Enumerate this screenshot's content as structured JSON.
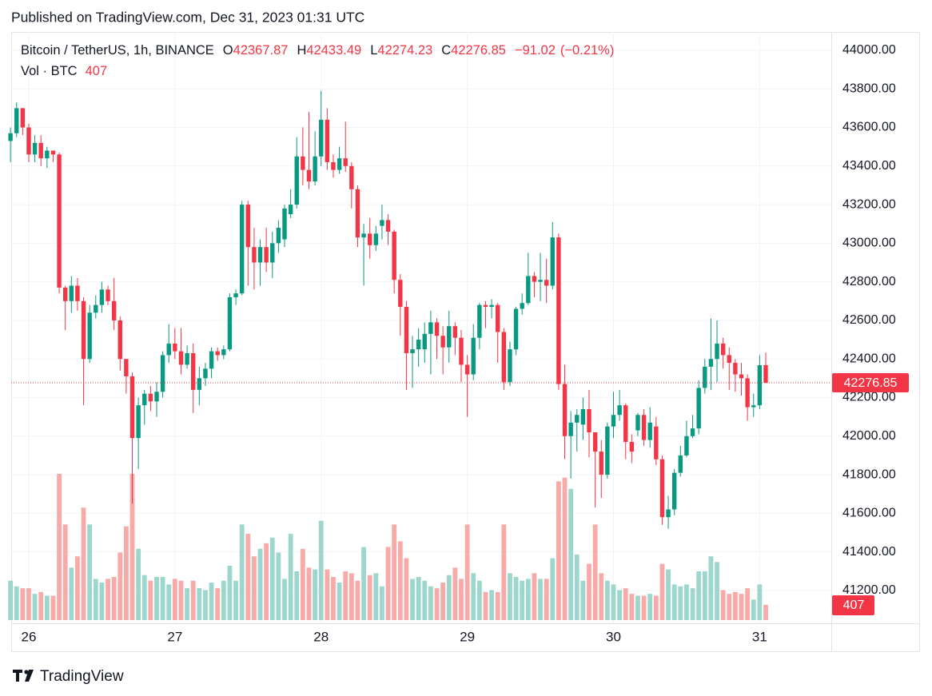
{
  "header": {
    "published": "Published on TradingView.com, Dec 31, 2023 01:31 UTC"
  },
  "footer": {
    "brand": "TradingView"
  },
  "chart_data": {
    "type": "candlestick",
    "symbol": "Bitcoin / TetherUS, 1h, BINANCE",
    "ohlc_labels": [
      "O",
      "H",
      "L",
      "C"
    ],
    "change": {
      "value": -91.02,
      "label": "−91.02"
    },
    "change_pct": {
      "value": -0.21,
      "label": "(−0.21%)"
    },
    "volume_label": "Vol · BTC",
    "up_color": "#089981",
    "down_color": "#f23645",
    "volume_up_color": "#9dd6cd",
    "volume_down_color": "#f7aaa8",
    "ylim": [
      41030,
      44095
    ],
    "yticks": [
      {
        "value": 41200,
        "label": "41200.00"
      },
      {
        "value": 41400,
        "label": "41400.00"
      },
      {
        "value": 41600,
        "label": "41600.00"
      },
      {
        "value": 41800,
        "label": "41800.00"
      },
      {
        "value": 42000,
        "label": "42000.00"
      },
      {
        "value": 42200,
        "label": "42200.00"
      },
      {
        "value": 42400,
        "label": "42400.00"
      },
      {
        "value": 42600,
        "label": "42600.00"
      },
      {
        "value": 42800,
        "label": "42800.00"
      },
      {
        "value": 43000,
        "label": "43000.00"
      },
      {
        "value": 43200,
        "label": "43200.00"
      },
      {
        "value": 43400,
        "label": "43400.00"
      },
      {
        "value": 43600,
        "label": "43600.00"
      },
      {
        "value": 43800,
        "label": "43800.00"
      },
      {
        "value": 44000,
        "label": "44000.00"
      }
    ],
    "grid": true,
    "categories": [
      null,
      null,
      null,
      "26",
      null,
      null,
      null,
      null,
      null,
      null,
      null,
      null,
      null,
      null,
      null,
      null,
      null,
      null,
      null,
      null,
      null,
      null,
      null,
      null,
      null,
      null,
      null,
      "27",
      null,
      null,
      null,
      null,
      null,
      null,
      null,
      null,
      null,
      null,
      null,
      null,
      null,
      null,
      null,
      null,
      null,
      null,
      null,
      null,
      null,
      null,
      null,
      "28",
      null,
      null,
      null,
      null,
      null,
      null,
      null,
      null,
      null,
      null,
      null,
      null,
      null,
      null,
      null,
      null,
      null,
      null,
      null,
      null,
      null,
      null,
      null,
      "29",
      null,
      null,
      null,
      null,
      null,
      null,
      null,
      null,
      null,
      null,
      null,
      null,
      null,
      null,
      null,
      null,
      null,
      null,
      null,
      null,
      null,
      null,
      null,
      "30",
      null,
      null,
      null,
      null,
      null,
      null,
      null,
      null,
      null,
      null,
      null,
      null,
      null,
      null,
      null,
      null,
      null,
      null,
      null,
      null,
      null,
      null,
      null,
      "31",
      null
    ],
    "open": [
      43530,
      43570,
      43700,
      43600,
      43460,
      43520,
      43440,
      43480,
      43460,
      42770,
      42700,
      42780,
      42700,
      42400,
      42640,
      42680,
      42760,
      42700,
      42600,
      42400,
      42310,
      41990,
      42160,
      42220,
      42180,
      42230,
      42420,
      42480,
      42440,
      42370,
      42430,
      42240,
      42300,
      42350,
      42440,
      42420,
      42450,
      42720,
      42740,
      43200,
      42980,
      42900,
      42980,
      42900,
      43000,
      43020,
      43150,
      43200,
      43450,
      43380,
      43320,
      43450,
      43640,
      43420,
      43380,
      43440,
      43400,
      43280,
      43030,
      43050,
      42990,
      43090,
      43120,
      43060,
      42810,
      42670,
      42430,
      42450,
      42450,
      42530,
      42590,
      42520,
      42460,
      42570,
      42510,
      42370,
      42320,
      42510,
      42680,
      42670,
      42680,
      42540,
      42280,
      42450,
      42660,
      42690,
      42830,
      42800,
      42810,
      42780,
      43030,
      42270,
      42000,
      42070,
      42060,
      42140,
      42020,
      41920,
      41800,
      42050,
      42110,
      42160,
      41970,
      42030,
      42110,
      41980,
      42050,
      41880,
      41580,
      41620,
      41810,
      41900,
      42000,
      42040,
      42250,
      42360,
      42400,
      42480,
      42420,
      42380,
      42320,
      42300,
      42150,
      42160,
      42367.87
    ],
    "high": [
      43600,
      43730,
      43700,
      43620,
      43560,
      43560,
      43500,
      43480,
      43470,
      42780,
      42830,
      42820,
      42720,
      42680,
      42730,
      42800,
      42780,
      42820,
      42620,
      42400,
      42330,
      42200,
      42240,
      42260,
      42280,
      42440,
      42580,
      42560,
      42560,
      42470,
      42480,
      42360,
      42380,
      42460,
      42460,
      42470,
      42740,
      42760,
      43220,
      43220,
      43080,
      43020,
      43080,
      43060,
      43120,
      43200,
      43280,
      43550,
      43600,
      43680,
      43580,
      43790,
      43700,
      43460,
      43500,
      43630,
      43420,
      43300,
      43100,
      43130,
      43090,
      43200,
      43150,
      43070,
      42840,
      42700,
      42520,
      42560,
      42590,
      42650,
      42610,
      42570,
      42650,
      42590,
      42550,
      42420,
      42580,
      42690,
      42700,
      42710,
      42690,
      42560,
      42490,
      42670,
      42740,
      42950,
      42850,
      42950,
      42920,
      43110,
      43050,
      42370,
      42130,
      42140,
      42200,
      42240,
      42020,
      41980,
      42070,
      42230,
      42240,
      42170,
      42010,
      42120,
      42140,
      42150,
      42100,
      41900,
      41690,
      41830,
      41950,
      42080,
      42110,
      42290,
      42400,
      42610,
      42600,
      42510,
      42460,
      42400,
      42380,
      42320,
      42220,
      42420,
      42433.49
    ],
    "low": [
      43420,
      43550,
      43560,
      43420,
      43420,
      43400,
      43390,
      43420,
      42740,
      42550,
      42640,
      42650,
      42160,
      42380,
      42610,
      42640,
      42680,
      42550,
      42340,
      42220,
      41650,
      41830,
      42060,
      42130,
      42100,
      42200,
      42380,
      42400,
      42320,
      42350,
      42120,
      42160,
      42260,
      42300,
      42390,
      42400,
      42440,
      42680,
      42730,
      42780,
      42760,
      42780,
      42850,
      42820,
      42950,
      42980,
      43130,
      43180,
      43300,
      43280,
      43300,
      43400,
      43380,
      43340,
      43360,
      43370,
      43180,
      42980,
      42780,
      42920,
      42960,
      43020,
      42990,
      42740,
      42520,
      42240,
      42250,
      42360,
      42380,
      42320,
      42400,
      42320,
      42380,
      42420,
      42280,
      42100,
      42290,
      42450,
      42560,
      42610,
      42380,
      42240,
      42260,
      42420,
      42630,
      42680,
      42720,
      42700,
      42690,
      42760,
      42240,
      41880,
      41780,
      41920,
      41980,
      41890,
      41630,
      41680,
      41780,
      41990,
      42080,
      41880,
      41860,
      42000,
      41950,
      41940,
      41850,
      41540,
      41520,
      41590,
      41790,
      41890,
      41990,
      42010,
      42220,
      42240,
      42280,
      42350,
      42240,
      42230,
      42210,
      42080,
      42100,
      42140,
      42274.23
    ],
    "close": [
      43570,
      43700,
      43600,
      43460,
      43520,
      43440,
      43480,
      43460,
      42770,
      42700,
      42780,
      42700,
      42400,
      42640,
      42680,
      42760,
      42700,
      42600,
      42400,
      42310,
      41990,
      42160,
      42220,
      42180,
      42230,
      42420,
      42480,
      42440,
      42370,
      42430,
      42240,
      42300,
      42350,
      42440,
      42420,
      42450,
      42720,
      42740,
      43200,
      42980,
      42900,
      42980,
      42900,
      43000,
      43080,
      43180,
      43200,
      43450,
      43380,
      43320,
      43450,
      43640,
      43420,
      43380,
      43440,
      43400,
      43280,
      43030,
      43050,
      42990,
      43050,
      43120,
      43060,
      42810,
      42670,
      42430,
      42450,
      42500,
      42530,
      42590,
      42520,
      42460,
      42570,
      42510,
      42370,
      42320,
      42510,
      42680,
      42670,
      42680,
      42540,
      42280,
      42450,
      42660,
      42690,
      42830,
      42800,
      42810,
      42780,
      43030,
      42270,
      42000,
      42070,
      42110,
      42140,
      42020,
      41920,
      41800,
      42050,
      42110,
      42160,
      41970,
      41920,
      42110,
      41980,
      42070,
      41880,
      41580,
      41620,
      41810,
      41900,
      42000,
      42040,
      42250,
      42360,
      42400,
      42480,
      42420,
      42380,
      42320,
      42300,
      42150,
      42160,
      42367.87,
      42276.85
    ],
    "volume": [
      1050,
      900,
      850,
      850,
      700,
      750,
      650,
      650,
      3900,
      2550,
      1400,
      1700,
      3000,
      2550,
      1100,
      1000,
      1100,
      1150,
      1800,
      2500,
      3900,
      1900,
      1200,
      1050,
      1150,
      1150,
      950,
      1100,
      1050,
      850,
      1050,
      850,
      800,
      1000,
      850,
      1050,
      1450,
      1050,
      2550,
      2300,
      1700,
      1900,
      2050,
      2200,
      1800,
      1100,
      2300,
      1300,
      1900,
      1400,
      1350,
      2650,
      1350,
      1150,
      1000,
      1300,
      1250,
      1050,
      1950,
      1200,
      1250,
      900,
      1950,
      2550,
      2100,
      1650,
      1100,
      1150,
      1050,
      900,
      850,
      1000,
      1200,
      1400,
      1100,
      2550,
      1250,
      1050,
      750,
      800,
      750,
      2550,
      1250,
      1150,
      1050,
      1100,
      1250,
      1100,
      1100,
      1650,
      3700,
      3800,
      3500,
      1750,
      1050,
      1500,
      2550,
      1250,
      1050,
      950,
      800,
      850,
      700,
      650,
      650,
      700,
      650,
      1500,
      1350,
      950,
      900,
      950,
      850,
      1300,
      1300,
      1700,
      1550,
      800,
      700,
      750,
      700,
      850,
      550,
      950,
      407
    ]
  }
}
